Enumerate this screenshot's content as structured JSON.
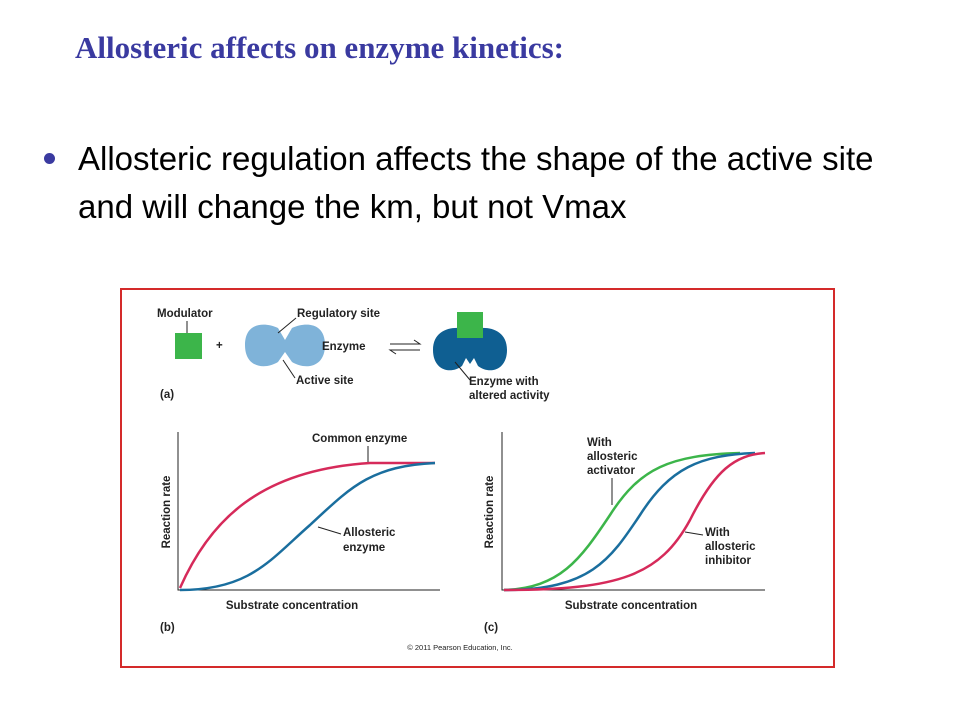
{
  "title": "Allosteric affects on enzyme kinetics:",
  "bullets": [
    "Allosteric regulation affects the shape of the active site and will change the km, but not Vmax"
  ],
  "figure": {
    "panel_a": {
      "modulator": "Modulator",
      "plus": "+",
      "regulatory_site": "Regulatory site",
      "enzyme": "Enzyme",
      "active_site": "Active site",
      "altered": [
        "Enzyme with",
        "altered activity"
      ],
      "label": "(a)"
    },
    "panel_b": {
      "y_label": "Reaction rate",
      "x_label": "Substrate concentration",
      "common": "Common enzyme",
      "allosteric": [
        "Allosteric",
        "enzyme"
      ],
      "label": "(b)"
    },
    "panel_c": {
      "y_label": "Reaction rate",
      "x_label": "Substrate concentration",
      "activator": [
        "With",
        "allosteric",
        "activator"
      ],
      "inhibitor": [
        "With",
        "allosteric",
        "inhibitor"
      ],
      "label": "(c)"
    },
    "copyright": "© 2011 Pearson Education, Inc."
  }
}
